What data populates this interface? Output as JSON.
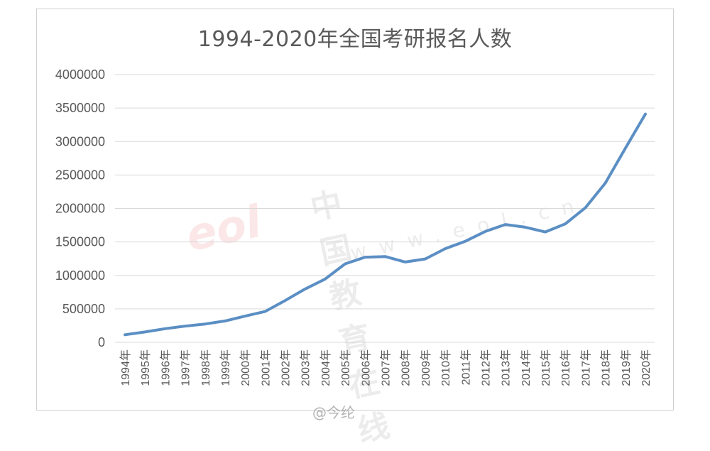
{
  "chart_data": {
    "type": "line",
    "title": "1994-2020年全国考研报名人数",
    "xlabel": "",
    "ylabel": "",
    "ylim": [
      0,
      4000000
    ],
    "yticks": [
      0,
      500000,
      1000000,
      1500000,
      2000000,
      2500000,
      3000000,
      3500000,
      4000000
    ],
    "ytick_labels": [
      "0",
      "500000",
      "1000000",
      "1500000",
      "2000000",
      "2500000",
      "3000000",
      "3500000",
      "4000000"
    ],
    "grid": true,
    "legend": null,
    "categories": [
      "1994年",
      "1995年",
      "1996年",
      "1997年",
      "1998年",
      "1999年",
      "2000年",
      "2001年",
      "2002年",
      "2003年",
      "2004年",
      "2005年",
      "2006年",
      "2007年",
      "2008年",
      "2009年",
      "2010年",
      "2011年",
      "2012年",
      "2013年",
      "2014年",
      "2015年",
      "2016年",
      "2017年",
      "2018年",
      "2019年",
      "2020年"
    ],
    "series": [
      {
        "name": "报名人数",
        "color": "#5b8fc4",
        "values": [
          113000,
          155000,
          204000,
          242000,
          274000,
          319000,
          392000,
          460000,
          624000,
          797000,
          945000,
          1172000,
          1272000,
          1282000,
          1200000,
          1246000,
          1400000,
          1510000,
          1656000,
          1760000,
          1720000,
          1649000,
          1770000,
          2010000,
          2380000,
          2900000,
          3410000
        ]
      }
    ]
  },
  "watermarks": {
    "site_name": "中国教育在线",
    "site_url": "www.eol.cn",
    "logo": "eol",
    "weibo": "@今纶"
  },
  "colors": {
    "line": "#5b8fc4",
    "grid": "#d9d9d9",
    "text": "#595959"
  }
}
